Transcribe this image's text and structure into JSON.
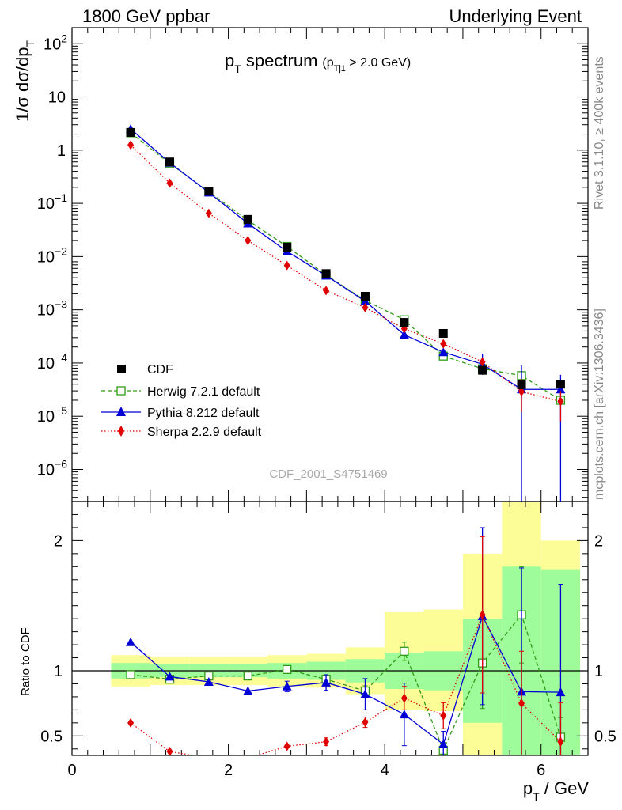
{
  "header": {
    "left": "1800 GeV ppbar",
    "right": "Underlying Event"
  },
  "side": {
    "rivet": "Rivet 3.1.10, ≥ 400k events",
    "mcplots": "mcplots.cern.ch [arXiv:1306.3436]"
  },
  "chart_data": {
    "type": "scatter",
    "title_main": "p",
    "title_main_sub": "T",
    "title_main_rest": " spectrum",
    "title_cut_open": "(p",
    "title_cut_sub": "Tj1",
    "title_cut_rest": " > 2.0 GeV)",
    "watermark": "CDF_2001_S4751469",
    "xlabel": "p",
    "xlabel_sub": "T",
    "xlabel_rest": " / GeV",
    "ylabel_main": "1/σ dσ/dp",
    "ylabel_main_sub": "T",
    "ylabel_ratio": "Ratio to CDF",
    "xlim": [
      0,
      6.6
    ],
    "ylim_main": [
      2.5e-07,
      200
    ],
    "ylog_main": true,
    "ylim_ratio": [
      0.35,
      2.3
    ],
    "main_yticks": [
      {
        "v": 1e-06,
        "b": "10",
        "e": "−6"
      },
      {
        "v": 1e-05,
        "b": "10",
        "e": "−5"
      },
      {
        "v": 0.0001,
        "b": "10",
        "e": "−4"
      },
      {
        "v": 0.001,
        "b": "10",
        "e": "−3"
      },
      {
        "v": 0.01,
        "b": "10",
        "e": "−2"
      },
      {
        "v": 0.1,
        "b": "10",
        "e": "−1"
      },
      {
        "v": 1,
        "b": "1",
        "e": ""
      },
      {
        "v": 10,
        "b": "10",
        "e": ""
      },
      {
        "v": 100,
        "b": "10",
        "e": "2"
      }
    ],
    "ratio_yticks": [
      {
        "v": 0.5,
        "label": "0.5"
      },
      {
        "v": 1,
        "label": "1"
      },
      {
        "v": 2,
        "label": "2"
      }
    ],
    "xticks": [
      {
        "v": 0,
        "label": "0"
      },
      {
        "v": 2,
        "label": "2"
      },
      {
        "v": 4,
        "label": "4"
      },
      {
        "v": 6,
        "label": "6"
      }
    ],
    "legend": {
      "position": "lower-left",
      "entries": [
        "CDF",
        "Herwig 7.2.1 default",
        "Pythia 8.212 default",
        "Sherpa 2.2.9 default"
      ]
    },
    "colors": {
      "data": "#000000",
      "herwig": "#2e9a15",
      "pythia": "#0000d6",
      "sherpa": "#e00000",
      "band_inner": "#9ffc9a",
      "band_outer": "#fdfd98"
    },
    "bins": [
      {
        "lo": 0.5,
        "hi": 1.0
      },
      {
        "lo": 1.0,
        "hi": 1.5
      },
      {
        "lo": 1.5,
        "hi": 2.0
      },
      {
        "lo": 2.0,
        "hi": 2.5
      },
      {
        "lo": 2.5,
        "hi": 3.0
      },
      {
        "lo": 3.0,
        "hi": 3.5
      },
      {
        "lo": 3.5,
        "hi": 4.0
      },
      {
        "lo": 4.0,
        "hi": 4.5
      },
      {
        "lo": 4.5,
        "hi": 5.0
      },
      {
        "lo": 5.0,
        "hi": 5.5
      },
      {
        "lo": 5.5,
        "hi": 6.0
      },
      {
        "lo": 6.0,
        "hi": 6.5
      }
    ],
    "x": [
      0.75,
      1.25,
      1.75,
      2.25,
      2.75,
      3.25,
      3.75,
      4.25,
      4.75,
      5.25,
      5.75,
      6.25
    ],
    "data": [
      2.15,
      0.6,
      0.17,
      0.05,
      0.015,
      0.0048,
      0.0018,
      0.00058,
      0.00036,
      7.3e-05,
      3.9e-05,
      4e-05
    ],
    "band_inner": [
      [
        0.94,
        1.06
      ],
      [
        0.95,
        1.05
      ],
      [
        0.95,
        1.05
      ],
      [
        0.95,
        1.05
      ],
      [
        0.94,
        1.06
      ],
      [
        0.93,
        1.07
      ],
      [
        0.91,
        1.09
      ],
      [
        0.86,
        1.14
      ],
      [
        0.85,
        1.15
      ],
      [
        0.6,
        1.4
      ],
      [
        0.35,
        1.8
      ],
      [
        0.35,
        1.78
      ]
    ],
    "band_outer": [
      [
        0.88,
        1.12
      ],
      [
        0.89,
        1.11
      ],
      [
        0.89,
        1.11
      ],
      [
        0.89,
        1.11
      ],
      [
        0.88,
        1.12
      ],
      [
        0.87,
        1.13
      ],
      [
        0.82,
        1.18
      ],
      [
        0.7,
        1.45
      ],
      [
        0.69,
        1.47
      ],
      [
        0.35,
        1.9
      ],
      [
        0.35,
        2.3
      ],
      [
        0.35,
        2.0
      ]
    ],
    "series": [
      {
        "name": "Herwig 7.2.1 default",
        "key": "herwig",
        "marker": "open-square",
        "line": "dashed",
        "values": [
          2.12,
          0.56,
          0.165,
          0.048,
          0.0155,
          0.0045,
          0.0015,
          0.00065,
          0.000135,
          7.8e-05,
          5.8e-05,
          2e-05
        ],
        "ratio": [
          0.97,
          0.935,
          0.96,
          0.96,
          1.01,
          0.935,
          0.845,
          1.15,
          0.39,
          1.06,
          1.43,
          0.49
        ],
        "ratio_err": [
          0.01,
          0.01,
          0.01,
          0.01,
          0.015,
          0.02,
          0.04,
          0.07,
          0.06,
          0.35,
          0.37,
          0.15
        ]
      },
      {
        "name": "Pythia 8.212 default",
        "key": "pythia",
        "marker": "filled-triangle",
        "line": "solid",
        "values": [
          2.5,
          0.58,
          0.16,
          0.042,
          0.0125,
          0.0044,
          0.00145,
          0.00034,
          0.00016,
          9.5e-05,
          3.2e-05,
          3.2e-05
        ],
        "ratio": [
          1.22,
          0.955,
          0.915,
          0.845,
          0.88,
          0.91,
          0.82,
          0.665,
          0.435,
          1.42,
          0.84,
          0.835
        ],
        "ratio_err": [
          0.01,
          0.01,
          0.01,
          0.015,
          0.04,
          0.06,
          0.12,
          0.24,
          0.1,
          0.68,
          0.95,
          0.83
        ]
      },
      {
        "name": "Sherpa 2.2.9 default",
        "key": "sherpa",
        "marker": "filled-diamond",
        "line": "dotted",
        "values": [
          1.25,
          0.24,
          0.065,
          0.02,
          0.0068,
          0.0023,
          0.0011,
          0.00044,
          0.00023,
          0.000105,
          2.9e-05,
          1.9e-05
        ],
        "ratio": [
          0.6,
          0.38,
          0.33,
          0.33,
          0.42,
          0.455,
          0.605,
          0.79,
          0.655,
          1.43,
          0.75,
          0.455
        ],
        "ratio_err": [
          0.01,
          0.01,
          0.01,
          0.01,
          0.015,
          0.03,
          0.04,
          0.09,
          0.1,
          0.6,
          0.4,
          0.3
        ]
      }
    ]
  }
}
